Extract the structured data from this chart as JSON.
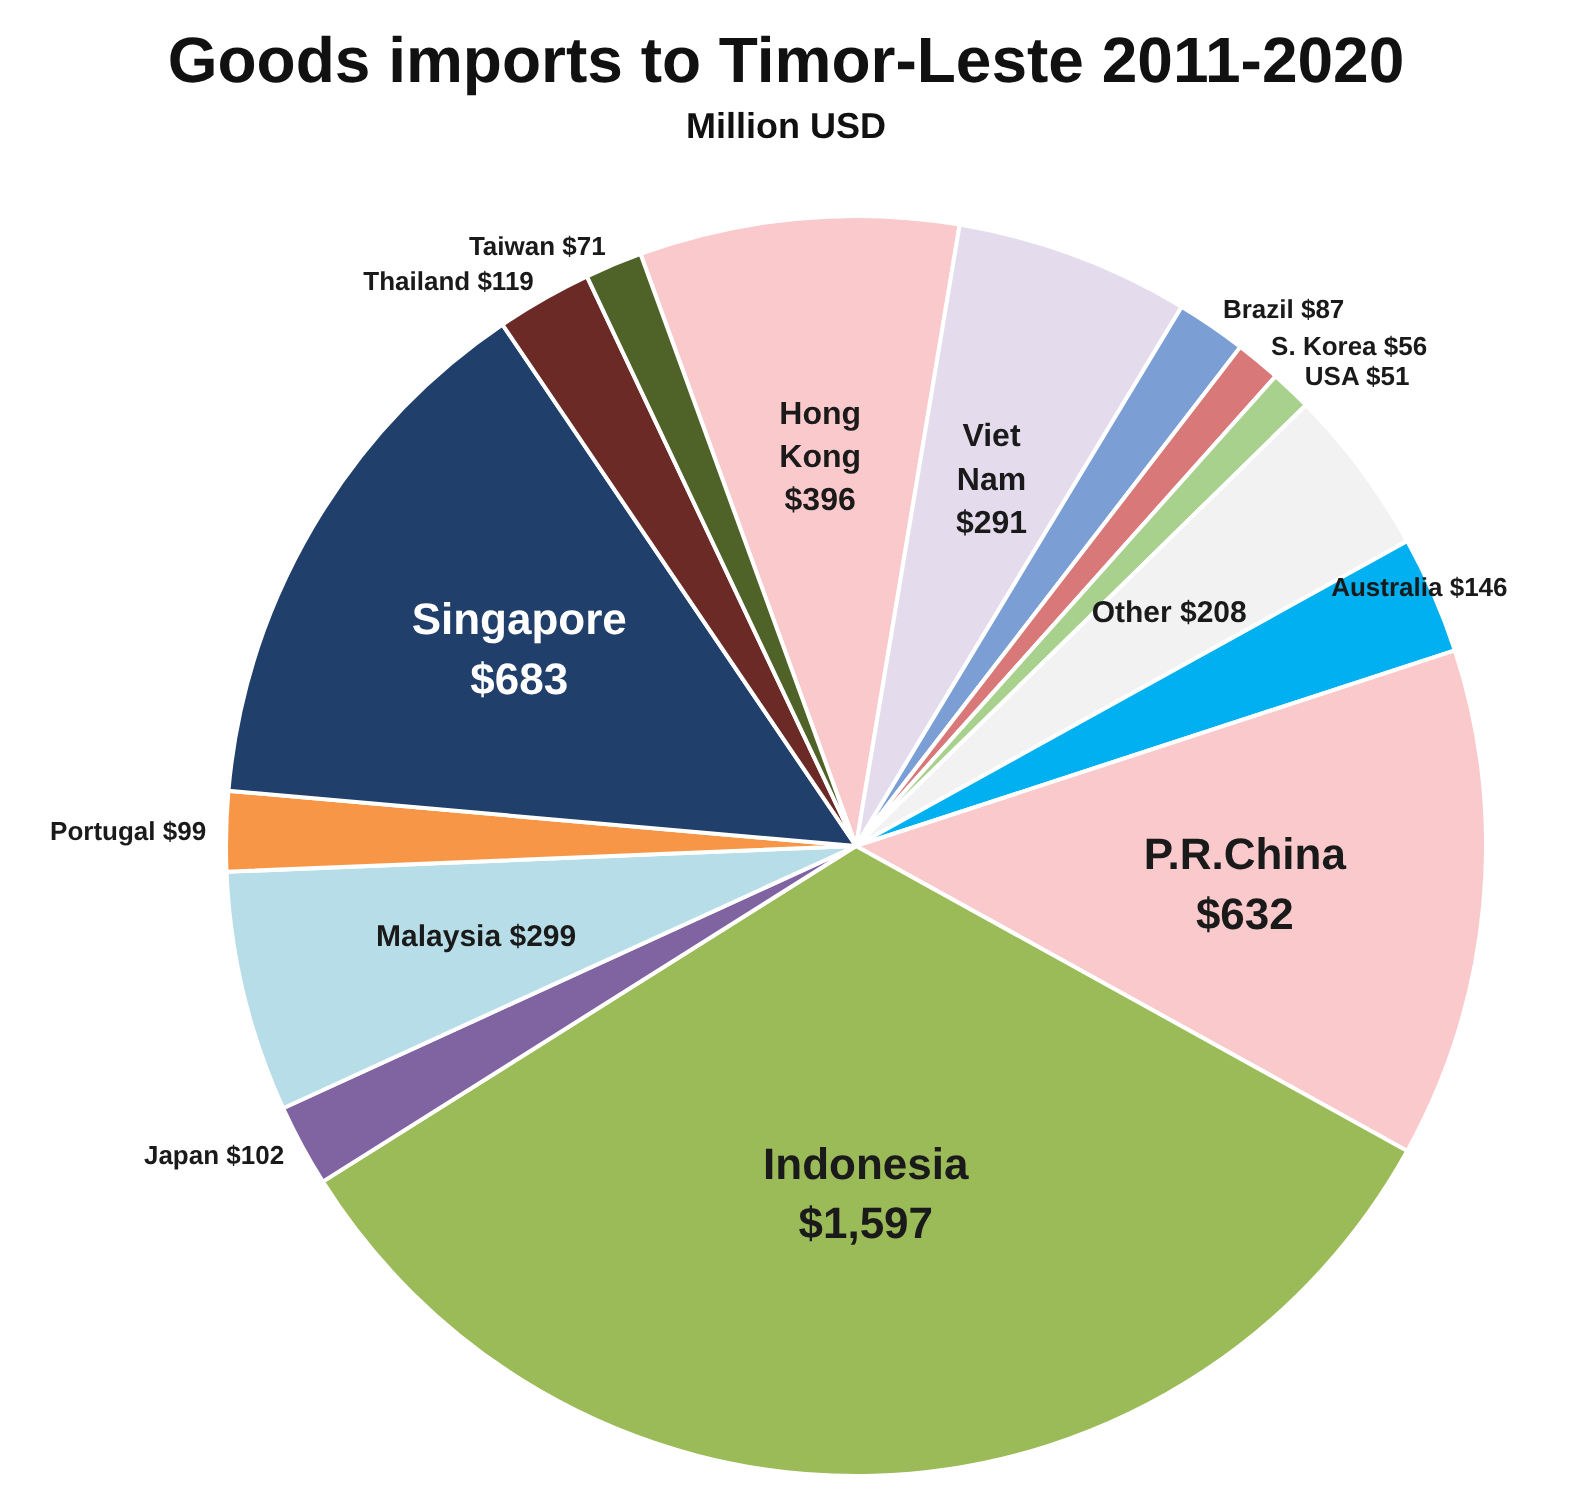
{
  "chart_data": {
    "type": "pie",
    "title": "Goods imports to Timor-Leste 2011-2020",
    "subtitle": "Million USD",
    "categories": [
      "Hong Kong",
      "Viet Nam",
      "Brazil",
      "S. Korea",
      "USA",
      "Other",
      "Australia",
      "P.R.China",
      "Indonesia",
      "Japan",
      "Malaysia",
      "Portugal",
      "Singapore",
      "Thailand",
      "Taiwan"
    ],
    "values": [
      396,
      291,
      87,
      56,
      51,
      208,
      146,
      632,
      1597,
      102,
      299,
      99,
      683,
      119,
      71
    ],
    "value_labels": [
      "$396",
      "$291",
      "$87",
      "$56",
      "$51",
      "$208",
      "$146",
      "$632",
      "$1,597",
      "$102",
      "$299",
      "$99",
      "$683",
      "$119",
      "$71"
    ],
    "colors": [
      "#f9c9cc",
      "#e4dced",
      "#7b9fd4",
      "#d97878",
      "#a9d18e",
      "#f2f2f2",
      "#00b0f0",
      "#f9c9cc",
      "#9bbb59",
      "#8064a2",
      "#b7dee8",
      "#f79646",
      "#213f6b",
      "#6b2a26",
      "#4f6228"
    ]
  }
}
